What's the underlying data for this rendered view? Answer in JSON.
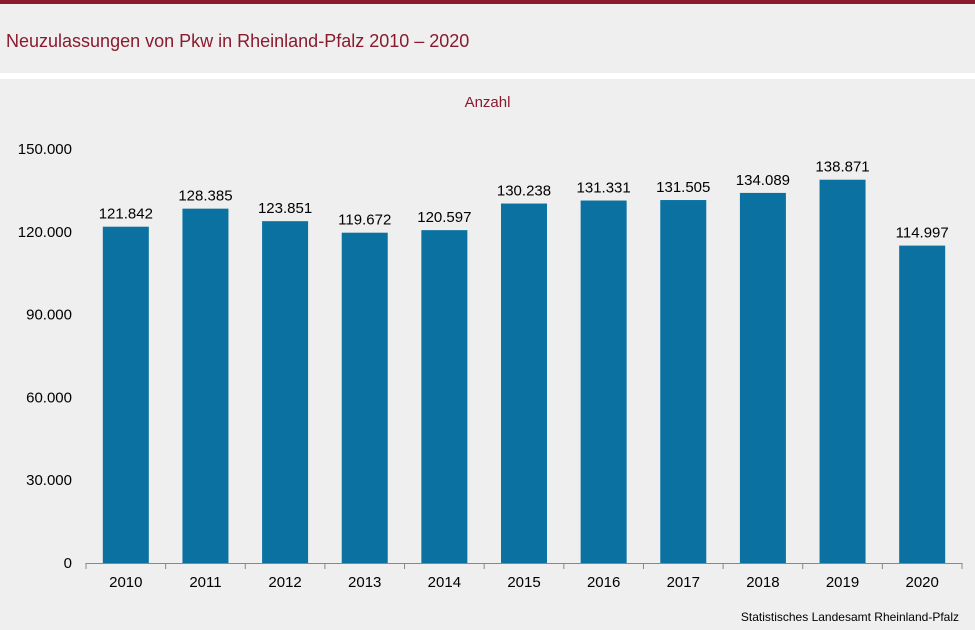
{
  "title": "Neuzulassungen von Pkw in Rheinland-Pfalz 2010 – 2020",
  "source": "Statistisches Landesamt  Rheinland-Pfalz",
  "colors": {
    "bar": "#0a71a0",
    "accent": "#8b1a2e",
    "background": "#efefef"
  },
  "chart_data": {
    "type": "bar",
    "title": "Neuzulassungen von Pkw in Rheinland-Pfalz 2010 – 2020",
    "ylabel": "Anzahl",
    "xlabel": "",
    "categories": [
      "2010",
      "2011",
      "2012",
      "2013",
      "2014",
      "2015",
      "2016",
      "2017",
      "2018",
      "2019",
      "2020"
    ],
    "values": [
      121842,
      128385,
      123851,
      119672,
      120597,
      130238,
      131331,
      131505,
      134089,
      138871,
      114997
    ],
    "value_labels": [
      "121.842",
      "128.385",
      "123.851",
      "119.672",
      "120.597",
      "130.238",
      "131.331",
      "131.505",
      "134.089",
      "138.871",
      "114.997"
    ],
    "ylim": [
      0,
      150000
    ],
    "yticks": [
      0,
      30000,
      60000,
      90000,
      120000,
      150000
    ],
    "ytick_labels": [
      "0",
      "30.000",
      "60.000",
      "90.000",
      "120.000",
      "150.000"
    ],
    "grid": false,
    "legend": "none"
  }
}
